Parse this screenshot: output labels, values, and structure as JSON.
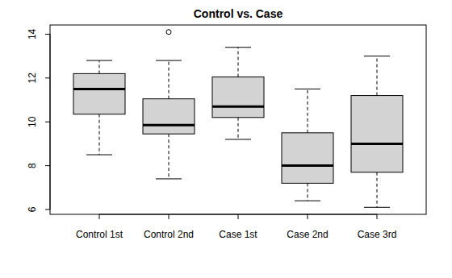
{
  "chart_data": {
    "type": "box",
    "title": "Control vs. Case",
    "categories": [
      "Control 1st",
      "Control 2nd",
      "Case 1st",
      "Case 2nd",
      "Case 3rd"
    ],
    "color": "#d3d3d3",
    "boxes": [
      {
        "min": 8.5,
        "q1": 10.35,
        "median": 11.5,
        "q3": 12.2,
        "max": 12.8,
        "outliers": []
      },
      {
        "min": 7.4,
        "q1": 9.45,
        "median": 9.85,
        "q3": 11.05,
        "max": 12.8,
        "outliers": [
          14.1
        ]
      },
      {
        "min": 9.2,
        "q1": 10.2,
        "median": 10.7,
        "q3": 12.05,
        "max": 13.4,
        "outliers": []
      },
      {
        "min": 6.4,
        "q1": 7.2,
        "median": 8.0,
        "q3": 9.5,
        "max": 11.5,
        "outliers": []
      },
      {
        "min": 6.1,
        "q1": 7.7,
        "median": 9.0,
        "q3": 11.2,
        "max": 13.0,
        "outliers": []
      }
    ],
    "ylim": [
      5.78,
      14.42
    ],
    "yticks": [
      6,
      8,
      10,
      12,
      14
    ]
  }
}
